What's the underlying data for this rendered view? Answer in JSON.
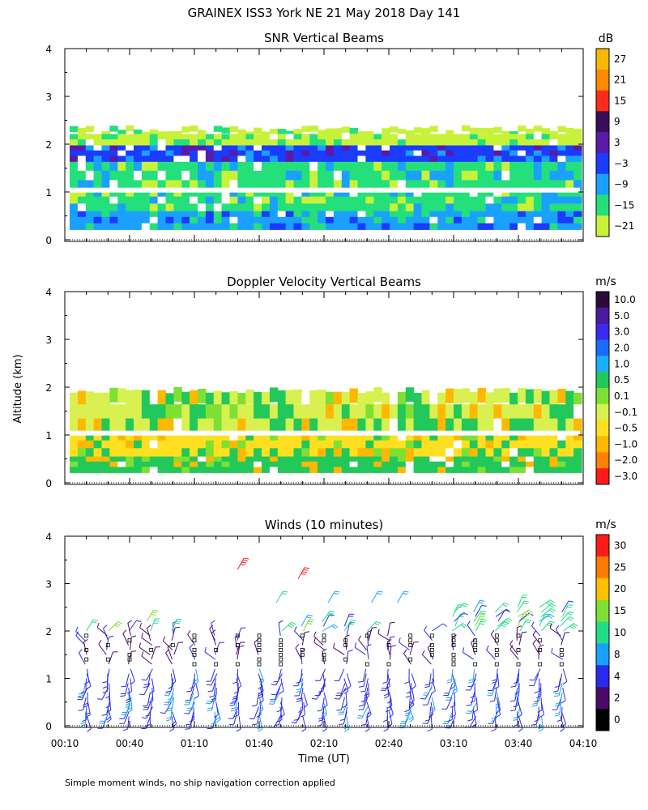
{
  "header": {
    "title": "GRAINEX ISS3 York NE  21 May 2018 Day 141",
    "y_axis_label": "Altitude (km)",
    "x_axis_label": "Time (UT)",
    "footnote": "Simple moment winds, no ship navigation correction applied"
  },
  "colors": {
    "frame": "#000000",
    "ground_line": "#000000"
  },
  "chart_data": [
    {
      "type": "heatmap",
      "title": "SNR Vertical Beams",
      "ylabel": "Altitude (km)",
      "xlabel": "Time (UT)",
      "ylim": [
        0,
        4
      ],
      "y_ticks": [
        "0",
        "1",
        "2",
        "3",
        "4"
      ],
      "xlim_minutes_ut": [
        10,
        250
      ],
      "colorbar": {
        "unit": "dB",
        "labels": [
          "27",
          "21",
          "15",
          "9",
          "3",
          "−3",
          "−9",
          "−15",
          "−21"
        ],
        "colors": [
          "#f7b800",
          "#ff8a00",
          "#ff2a1a",
          "#3a0d5c",
          "#5a1aa8",
          "#1a3cff",
          "#1aa0ff",
          "#24e07a",
          "#c8f23a"
        ]
      },
      "bands": [
        {
          "from_km": 0.15,
          "to_km": 0.55,
          "value_db": -9
        },
        {
          "from_km": 0.55,
          "to_km": 1.0,
          "value_db": -15
        },
        {
          "from_km": 1.0,
          "to_km": 1.6,
          "value_db": -18
        },
        {
          "from_km": 1.6,
          "to_km": 1.95,
          "value_db": -6
        },
        {
          "from_km": 1.95,
          "to_km": 2.3,
          "value_db": -21
        }
      ]
    },
    {
      "type": "heatmap",
      "title": "Doppler Velocity Vertical Beams",
      "ylabel": "Altitude (km)",
      "xlabel": "Time (UT)",
      "ylim": [
        0,
        4
      ],
      "y_ticks": [
        "0",
        "1",
        "2",
        "3",
        "4"
      ],
      "xlim_minutes_ut": [
        10,
        250
      ],
      "colorbar": {
        "unit": "m/s",
        "labels": [
          "10.0",
          "5.0",
          "3.0",
          "2.0",
          "1.0",
          "0.5",
          "0.1",
          "−0.1",
          "−0.5",
          "−1.0",
          "−2.0",
          "−3.0"
        ],
        "colors": [
          "#2a0a3a",
          "#4a1aa0",
          "#3a2aee",
          "#1a6cff",
          "#1ab0ff",
          "#22c85a",
          "#7ee032",
          "#d8f050",
          "#ffe020",
          "#ffb800",
          "#ff8000",
          "#ff1a1a"
        ]
      },
      "bands": [
        {
          "from_km": 0.15,
          "to_km": 0.5,
          "value_ms": 0.5
        },
        {
          "from_km": 0.5,
          "to_km": 1.0,
          "value_ms": -0.5
        },
        {
          "from_km": 1.0,
          "to_km": 1.9,
          "value_ms": -0.1
        }
      ]
    },
    {
      "type": "scatter",
      "title": "Winds (10 minutes)",
      "ylabel": "Altitude (km)",
      "xlabel": "Time (UT)",
      "ylim": [
        0,
        4
      ],
      "y_ticks": [
        "0",
        "1",
        "2",
        "3",
        "4"
      ],
      "xlim_minutes_ut": [
        10,
        250
      ],
      "x_ticks": [
        "00:10",
        "00:40",
        "01:10",
        "01:40",
        "02:10",
        "02:40",
        "03:10",
        "03:40",
        "04:10"
      ],
      "colorbar": {
        "unit": "m/s",
        "labels": [
          "30",
          "25",
          "20",
          "15",
          "10",
          "8",
          "4",
          "2",
          "0"
        ],
        "colors": [
          "#ff1a1a",
          "#ff7a00",
          "#ffc000",
          "#7ee032",
          "#22dd88",
          "#1aa0ff",
          "#2a2aee",
          "#4a0a6a",
          "#000000"
        ]
      },
      "profile_times_minutes_ut": [
        20,
        30,
        40,
        50,
        60,
        70,
        80,
        90,
        100,
        110,
        120,
        130,
        140,
        150,
        160,
        170,
        180,
        190,
        200,
        210,
        220,
        230,
        240
      ],
      "profile_top_km": [
        2.1,
        2.1,
        2.1,
        2.1,
        2.1,
        2.0,
        2.0,
        2.0,
        2.0,
        2.1,
        2.2,
        2.3,
        2.2,
        2.1,
        2.0,
        2.0,
        2.1,
        2.5,
        2.5,
        2.5,
        2.6,
        2.6,
        2.5
      ],
      "isolated_barbs_km": [
        {
          "t": 90,
          "z": 3.3,
          "speed": 30
        },
        {
          "t": 108,
          "z": 2.6,
          "speed": 10
        },
        {
          "t": 118,
          "z": 3.1,
          "speed": 30
        },
        {
          "t": 132,
          "z": 2.6,
          "speed": 8
        },
        {
          "t": 152,
          "z": 2.6,
          "speed": 8
        },
        {
          "t": 164,
          "z": 2.6,
          "speed": 8
        },
        {
          "t": 48,
          "z": 2.2,
          "speed": 15
        }
      ]
    }
  ]
}
